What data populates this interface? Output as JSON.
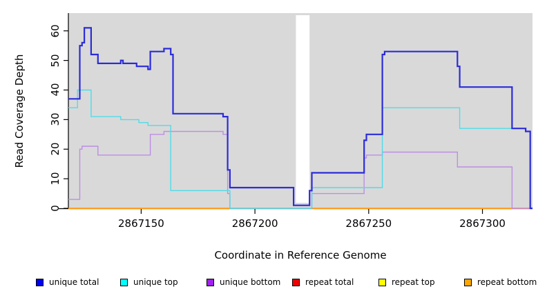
{
  "chart_data": {
    "type": "line",
    "step": true,
    "title": "",
    "xlabel": "Coordinate in Reference Genome",
    "ylabel": "Read Coverage Depth",
    "xlim": [
      2867118,
      2867322
    ],
    "ylim": [
      0,
      66
    ],
    "x_ticks": [
      2867150,
      2867200,
      2867250,
      2867300
    ],
    "y_ticks": [
      0,
      10,
      20,
      30,
      40,
      50,
      60
    ],
    "grid": false,
    "legend_position": "bottom",
    "panel_background": "#d9d9d9",
    "masked_region": {
      "x_start": 2867218,
      "x_end": 2867224,
      "color": "#ffffff"
    },
    "series": [
      {
        "name": "unique total",
        "color": "#2b2bd9",
        "legend_color": "#0000f0",
        "line_width": 2.2,
        "z": 6,
        "points": [
          [
            2867118,
            37
          ],
          [
            2867123,
            55
          ],
          [
            2867124,
            56
          ],
          [
            2867125,
            61
          ],
          [
            2867128,
            52
          ],
          [
            2867131,
            49
          ],
          [
            2867141,
            50
          ],
          [
            2867142,
            49
          ],
          [
            2867148,
            48
          ],
          [
            2867153,
            47
          ],
          [
            2867154,
            53
          ],
          [
            2867160,
            54
          ],
          [
            2867163,
            52
          ],
          [
            2867164,
            32
          ],
          [
            2867186,
            31
          ],
          [
            2867188,
            13
          ],
          [
            2867189,
            7
          ],
          [
            2867217,
            1
          ],
          [
            2867224,
            6
          ],
          [
            2867225,
            12
          ],
          [
            2867248,
            23
          ],
          [
            2867249,
            25
          ],
          [
            2867256,
            52
          ],
          [
            2867257,
            53
          ],
          [
            2867289,
            48
          ],
          [
            2867290,
            41
          ],
          [
            2867313,
            27
          ],
          [
            2867319,
            26
          ],
          [
            2867321,
            0
          ],
          [
            2867322,
            0
          ]
        ]
      },
      {
        "name": "unique top",
        "color": "#4fdce8",
        "legend_color": "#00ffff",
        "line_width": 1.4,
        "z": 5,
        "points": [
          [
            2867118,
            34
          ],
          [
            2867122,
            40
          ],
          [
            2867128,
            31
          ],
          [
            2867141,
            30
          ],
          [
            2867149,
            29
          ],
          [
            2867153,
            28
          ],
          [
            2867163,
            6
          ],
          [
            2867189,
            0
          ],
          [
            2867225,
            7
          ],
          [
            2867256,
            34
          ],
          [
            2867290,
            27
          ],
          [
            2867319,
            26
          ],
          [
            2867321,
            0
          ],
          [
            2867322,
            0
          ]
        ]
      },
      {
        "name": "unique bottom",
        "color": "#bc8ee4",
        "legend_color": "#a020f0",
        "line_width": 1.4,
        "z": 4,
        "points": [
          [
            2867118,
            3
          ],
          [
            2867123,
            20
          ],
          [
            2867124,
            21
          ],
          [
            2867131,
            18
          ],
          [
            2867154,
            25
          ],
          [
            2867160,
            26
          ],
          [
            2867186,
            25
          ],
          [
            2867188,
            5
          ],
          [
            2867189,
            0
          ],
          [
            2867225,
            5
          ],
          [
            2867248,
            17
          ],
          [
            2867249,
            18
          ],
          [
            2867256,
            19
          ],
          [
            2867289,
            14
          ],
          [
            2867313,
            0
          ],
          [
            2867322,
            0
          ]
        ]
      },
      {
        "name": "repeat total",
        "color": "#ee0000",
        "legend_color": "#ee0000",
        "line_width": 1.4,
        "z": 1,
        "points": [
          [
            2867118,
            0
          ],
          [
            2867322,
            0
          ]
        ]
      },
      {
        "name": "repeat top",
        "color": "#ffff00",
        "legend_color": "#ffff00",
        "line_width": 1.4,
        "z": 2,
        "points": [
          [
            2867118,
            0
          ],
          [
            2867322,
            0
          ]
        ]
      },
      {
        "name": "repeat bottom",
        "color": "#ff9d20",
        "legend_color": "#ffa500",
        "line_width": 2,
        "z": 3,
        "points": [
          [
            2867118,
            0
          ],
          [
            2867322,
            0
          ]
        ]
      }
    ]
  },
  "legend": {
    "items": [
      {
        "label": "unique total",
        "color": "#0000f0"
      },
      {
        "label": "unique top",
        "color": "#00ffff"
      },
      {
        "label": "unique bottom",
        "color": "#a020f0"
      },
      {
        "label": "repeat total",
        "color": "#ee0000"
      },
      {
        "label": "repeat top",
        "color": "#ffff00"
      },
      {
        "label": "repeat bottom",
        "color": "#ffa500"
      }
    ]
  }
}
